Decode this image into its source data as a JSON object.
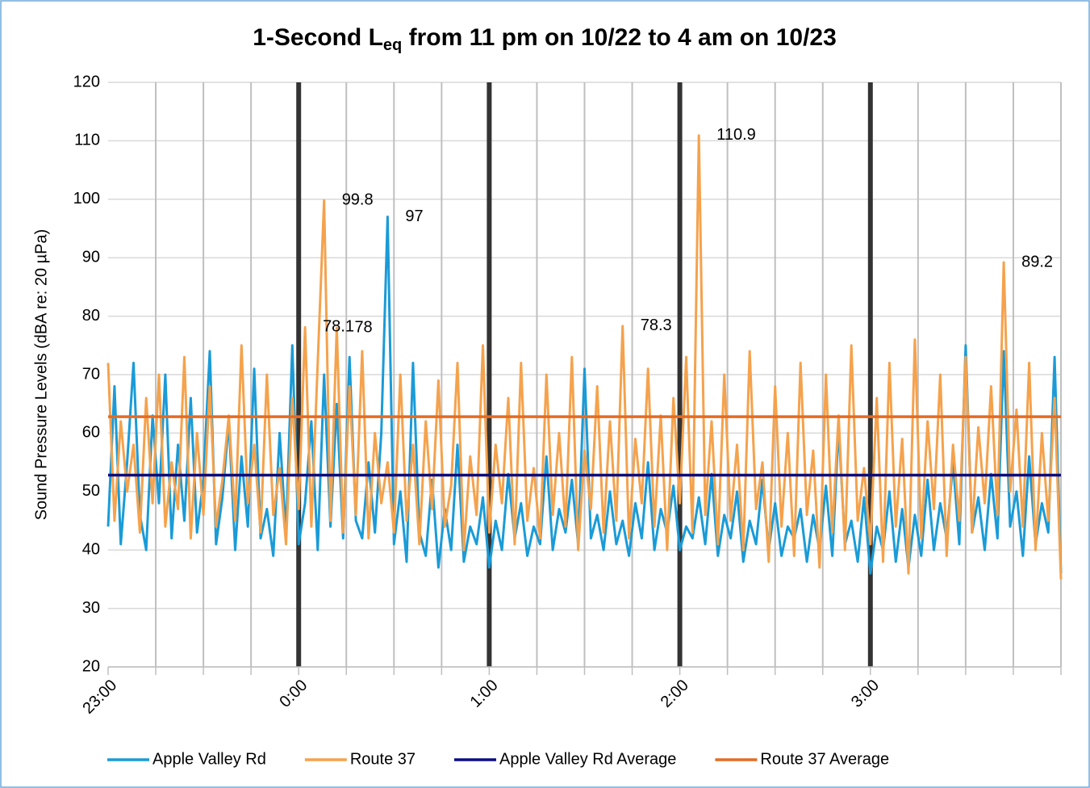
{
  "chart_data": {
    "type": "line",
    "title": [
      "1-Second L",
      "eq",
      " from 11 pm on 10/22 to 4 am on 10/23"
    ],
    "y_label": "Sound Pressure Levels (dBA re: 20 µPa)",
    "xlim": [
      0,
      300
    ],
    "xticks": [
      {
        "value": 0,
        "label": "23:00"
      },
      {
        "value": 60,
        "label": "0:00"
      },
      {
        "value": 120,
        "label": "1:00"
      },
      {
        "value": 180,
        "label": "2:00"
      },
      {
        "value": 240,
        "label": "3:00"
      }
    ],
    "xminor": [
      15,
      30,
      45,
      75,
      90,
      105,
      135,
      150,
      165,
      195,
      210,
      225,
      255,
      270,
      285,
      300
    ],
    "ylim": [
      20,
      120
    ],
    "yticks": [
      20,
      30,
      40,
      50,
      60,
      70,
      80,
      90,
      100,
      110,
      120
    ],
    "grid": true,
    "x": [
      0,
      2,
      4,
      6,
      8,
      10,
      12,
      14,
      16,
      18,
      20,
      22,
      24,
      26,
      28,
      30,
      32,
      34,
      36,
      38,
      40,
      42,
      44,
      46,
      48,
      50,
      52,
      54,
      56,
      58,
      60,
      62,
      64,
      66,
      68,
      70,
      72,
      74,
      76,
      78,
      80,
      82,
      84,
      86,
      88,
      90,
      92,
      94,
      96,
      98,
      100,
      102,
      104,
      106,
      108,
      110,
      112,
      114,
      116,
      118,
      120,
      122,
      124,
      126,
      128,
      130,
      132,
      134,
      136,
      138,
      140,
      142,
      144,
      146,
      148,
      150,
      152,
      154,
      156,
      158,
      160,
      162,
      164,
      166,
      168,
      170,
      172,
      174,
      176,
      178,
      180,
      182,
      184,
      186,
      188,
      190,
      192,
      194,
      196,
      198,
      200,
      202,
      204,
      206,
      208,
      210,
      212,
      214,
      216,
      218,
      220,
      222,
      224,
      226,
      228,
      230,
      232,
      234,
      236,
      238,
      240,
      242,
      244,
      246,
      248,
      250,
      252,
      254,
      256,
      258,
      260,
      262,
      264,
      266,
      268,
      270,
      272,
      274,
      276,
      278,
      280,
      282,
      284,
      286,
      288,
      290,
      292,
      294,
      296,
      298,
      300
    ],
    "series": [
      {
        "name": "Apple Valley Rd",
        "color": "#1a9bd7",
        "values": [
          44,
          68,
          41,
          55,
          72,
          46,
          40,
          63,
          48,
          70,
          42,
          58,
          45,
          66,
          43,
          52,
          74,
          41,
          49,
          62,
          40,
          56,
          44,
          71,
          42,
          47,
          39,
          60,
          43,
          75,
          41,
          48,
          62,
          40,
          70,
          44,
          65,
          42,
          73,
          45,
          42,
          55,
          43,
          60,
          97,
          41,
          50,
          38,
          72,
          43,
          39,
          52,
          37,
          47,
          40,
          58,
          38,
          44,
          41,
          49,
          37,
          45,
          40,
          53,
          42,
          48,
          39,
          44,
          41,
          56,
          40,
          47,
          43,
          52,
          41,
          71,
          42,
          46,
          40,
          50,
          41,
          45,
          39,
          48,
          42,
          55,
          40,
          47,
          43,
          51,
          40,
          44,
          42,
          49,
          41,
          53,
          39,
          46,
          42,
          50,
          38,
          45,
          41,
          52,
          40,
          48,
          39,
          44,
          42,
          47,
          38,
          46,
          40,
          51,
          39,
          61,
          41,
          45,
          38,
          49,
          36,
          44,
          40,
          50,
          38,
          47,
          37,
          46,
          39,
          52,
          40,
          48,
          42,
          55,
          41,
          75,
          43,
          49,
          40,
          53,
          42,
          74,
          44,
          50,
          39,
          56,
          41,
          48,
          43,
          73,
          36
        ],
        "value_labels": [
          null,
          null,
          null,
          null,
          null,
          null,
          null,
          null,
          null,
          null,
          null,
          null,
          null,
          null,
          null,
          null,
          null,
          null,
          null,
          null,
          null,
          null,
          null,
          null,
          null,
          null,
          null,
          null,
          null,
          null,
          null,
          null,
          null,
          null,
          null,
          null,
          null,
          null,
          null,
          null,
          null,
          null,
          null,
          null,
          "97",
          null,
          null,
          null,
          null,
          null,
          null,
          null,
          null,
          null,
          null,
          null,
          null,
          null,
          null,
          null,
          null,
          null,
          null,
          null,
          null,
          null,
          null,
          null,
          null,
          null,
          null,
          null,
          null,
          null,
          null,
          null,
          null,
          null,
          null,
          null,
          null,
          null,
          null,
          null,
          null,
          null,
          null,
          null,
          null,
          null,
          null,
          null,
          null,
          null,
          null,
          null,
          null,
          null,
          null,
          null,
          null,
          null,
          null,
          null,
          null,
          null,
          null,
          null,
          null,
          null,
          null,
          null,
          null,
          null,
          null,
          null,
          null,
          null,
          null,
          null,
          null,
          null,
          null,
          null,
          null,
          null,
          null,
          null,
          null,
          null,
          null,
          null,
          null,
          null,
          null,
          null,
          null,
          null,
          null,
          null,
          null,
          null,
          null,
          null,
          null,
          null,
          null,
          null,
          null,
          null,
          null
        ]
      },
      {
        "name": "Route 37",
        "color": "#f5a24c",
        "values": [
          72,
          45,
          62,
          50,
          58,
          43,
          66,
          48,
          70,
          44,
          55,
          47,
          73,
          42,
          60,
          46,
          68,
          44,
          52,
          63,
          45,
          75,
          48,
          58,
          43,
          70,
          46,
          54,
          41,
          66,
          47,
          78.1,
          44,
          72,
          99.8,
          45,
          78,
          43,
          68,
          46,
          74,
          42,
          60,
          48,
          55,
          43,
          70,
          45,
          58,
          41,
          62,
          47,
          69,
          44,
          51,
          72,
          40,
          56,
          46,
          75,
          43,
          58,
          48,
          66,
          41,
          72,
          45,
          54,
          42,
          70,
          46,
          60,
          44,
          73,
          40,
          57,
          47,
          68,
          43,
          62,
          45,
          78.3,
          42,
          59,
          48,
          71,
          44,
          63,
          40,
          66,
          48,
          73,
          43,
          110.9,
          46,
          62,
          41,
          70,
          45,
          58,
          40,
          74,
          47,
          55,
          38,
          68,
          44,
          60,
          39,
          72,
          46,
          57,
          37,
          70,
          43,
          63,
          40,
          75,
          45,
          54,
          41,
          66,
          38,
          72,
          44,
          59,
          36,
          76,
          42,
          62,
          47,
          70,
          39,
          58,
          45,
          73,
          43,
          61,
          48,
          68,
          46,
          89.2,
          50,
          64,
          44,
          72,
          40,
          60,
          45,
          66,
          35
        ],
        "value_labels": [
          null,
          null,
          null,
          null,
          null,
          null,
          null,
          null,
          null,
          null,
          null,
          null,
          null,
          null,
          null,
          null,
          null,
          null,
          null,
          null,
          null,
          null,
          null,
          null,
          null,
          null,
          null,
          null,
          null,
          null,
          null,
          "78.1",
          null,
          null,
          "99.8",
          null,
          "78",
          null,
          null,
          null,
          null,
          null,
          null,
          null,
          null,
          null,
          null,
          null,
          null,
          null,
          null,
          null,
          null,
          null,
          null,
          null,
          null,
          null,
          null,
          null,
          null,
          null,
          null,
          null,
          null,
          null,
          null,
          null,
          null,
          null,
          null,
          null,
          null,
          null,
          null,
          null,
          null,
          null,
          null,
          null,
          null,
          "78.3",
          null,
          null,
          null,
          null,
          null,
          null,
          null,
          null,
          null,
          null,
          null,
          "110.9",
          null,
          null,
          null,
          null,
          null,
          null,
          null,
          null,
          null,
          null,
          null,
          null,
          null,
          null,
          null,
          null,
          null,
          null,
          null,
          null,
          null,
          null,
          null,
          null,
          null,
          null,
          null,
          null,
          null,
          null,
          null,
          null,
          null,
          null,
          null,
          null,
          null,
          null,
          null,
          null,
          null,
          null,
          null,
          null,
          null,
          null,
          null,
          "89.2",
          null,
          null,
          null,
          null,
          null,
          null,
          null,
          null,
          null
        ]
      },
      {
        "name": "Apple Valley Rd Average",
        "color": "#0c0c80",
        "type": "hline",
        "value": 52.8
      },
      {
        "name": "Route 37 Average",
        "color": "#e46b23",
        "type": "hline",
        "value": 62.8
      }
    ]
  }
}
